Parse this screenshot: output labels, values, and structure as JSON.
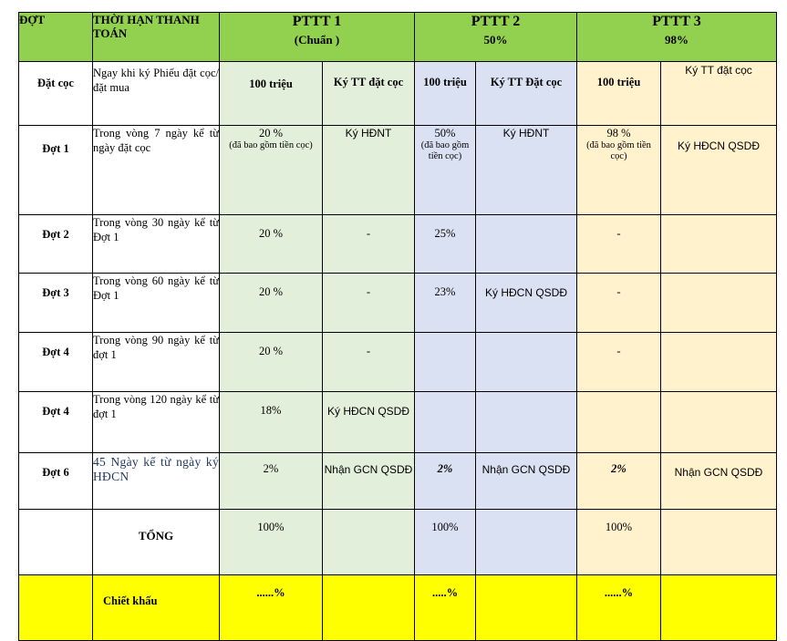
{
  "header": {
    "col_dot": "ĐỢT",
    "col_term": "THỜI HẠN THANH TOÁN",
    "plans": [
      {
        "title": "PTTT 1",
        "sub": "(Chuẩn )"
      },
      {
        "title": "PTTT 2",
        "sub": "50%"
      },
      {
        "title": "PTTT 3",
        "sub": "98%"
      }
    ]
  },
  "deposit_row": {
    "label": "Đặt cọc",
    "term": "Ngay khi ký Phiếu đặt cọc/đặt mua",
    "p1_amount": "100 triệu",
    "p1_sign": "Ký TT đặt cọc",
    "p2_amount": "100 triệu",
    "p2_sign": "Ký TT Đặt cọc",
    "p3_amount": "100 triệu",
    "p3_sign": "Ký TT đặt cọc"
  },
  "rows": [
    {
      "label": "Đợt 1",
      "term": "Trong vòng 7 ngày kể từ ngày đặt cọc",
      "p1_pct": "20 %",
      "p1_note": "(đã bao gồm tiền cọc)",
      "p1_sign": "Ký HĐNT",
      "p2_pct": "50%",
      "p2_note": "(đã bao gồm tiền cọc)",
      "p2_sign": "Ký HĐNT",
      "p3_pct": "98 %",
      "p3_note": "(đã bao gồm tiền cọc)",
      "p3_sign": "Ký HĐCN QSDĐ"
    },
    {
      "label": "Đợt 2",
      "term": "Trong vòng 30 ngày kể từ Đợt 1",
      "p1_pct": "20 %",
      "p1_sign": "-",
      "p2_pct": "25%",
      "p2_sign": "",
      "p3_pct": "-",
      "p3_sign": ""
    },
    {
      "label": "Đợt 3",
      "term": "Trong vòng 60 ngày  kể từ Đợt 1",
      "p1_pct": "20 %",
      "p1_sign": "-",
      "p2_pct": "23%",
      "p2_sign": "Ký HĐCN QSDĐ",
      "p3_pct": "-",
      "p3_sign": ""
    },
    {
      "label": "Đợt 4",
      "term": "Trong vòng 90 ngày kể từ đợt 1",
      "p1_pct": "20 %",
      "p1_sign": "-",
      "p2_pct": "",
      "p2_sign": "",
      "p3_pct": "-",
      "p3_sign": ""
    },
    {
      "label": "Đợt 4",
      "term": "Trong vòng 120 ngày kể từ đợt 1",
      "p1_pct": "18%",
      "p1_sign": "Ký HĐCN QSDĐ",
      "p2_pct": "",
      "p2_sign": "",
      "p3_pct": "",
      "p3_sign": ""
    },
    {
      "label": "Đợt 6",
      "term": "45 Ngày kể từ ngày ký HĐCN",
      "p1_pct": "2%",
      "p1_sign": "Nhận GCN QSDĐ",
      "p2_pct": "2%",
      "p2_sign": "Nhận GCN QSDĐ",
      "p3_pct": "2%",
      "p3_sign": "Nhận GCN QSDĐ"
    }
  ],
  "total_row": {
    "label": "TỔNG",
    "p1": "100%",
    "p2": "100%",
    "p3": "100%"
  },
  "discount_row": {
    "label": "Chiết khấu",
    "p1": "......%",
    "p2": ".....%",
    "p3": "......%"
  },
  "colors": {
    "header_green": "#92d050",
    "plan1_bg": "#e2efda",
    "plan2_bg": "#d9e1f2",
    "plan3_bg": "#fff2cc",
    "discount_yellow": "#ffff00"
  }
}
